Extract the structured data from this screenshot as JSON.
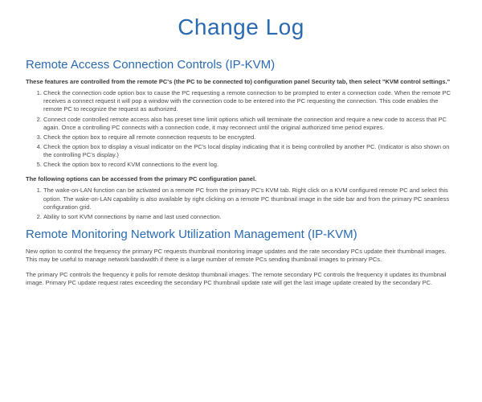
{
  "title": "Change Log",
  "section1": {
    "heading": "Remote Access Connection Controls (IP-KVM)",
    "intro": "These features are controlled from the remote PC's (the PC to be connected to) configuration panel Security tab, then select \"KVM control settings.\"",
    "items": [
      "Check the connection code option box to cause the PC requesting a remote connection to be prompted to enter a connection code. When the remote PC receives a connect request it will pop a window with the connection code to be entered into the PC requesting the connection. This code enables the remote PC to recognize the request as authorized.",
      "Connect code controlled remote access also has preset time limit options which will terminate the connection and require a new code to access that PC again. Once a controlling PC connects with a connection code, it may reconnect until the original authorized time period expires.",
      "Check the option box to require all remote connection requests to be encrypted.",
      "Check the option box to display a visual indicator on the PC's local display indicating that it is being controlled by another PC. (Indicator is also shown on the controlling PC's display.)",
      "Check the option box to record KVM connections to the event log."
    ],
    "intro2": "The following options can be accessed from the primary PC configuration panel.",
    "items2": [
      "The wake-on-LAN function can be activated on a remote PC from the primary PC's KVM tab. Right click on a KVM configured remote PC and select this option. The wake-on-LAN capability is also available by right clicking on a remote PC thumbnail image in the side bar and from the primary PC seamless configuration grid.",
      "Ability to sort KVM connections by name and last used connection."
    ]
  },
  "section2": {
    "heading": "Remote Monitoring Network Utilization Management (IP-KVM)",
    "para1": "New option to control the frequency the primary PC requests thumbnail monitoring image updates and the rate secondary PCs update their thumbnail images. This may be useful to manage network bandwidth if there is a large number of remote PCs sending thumbnail images to primary PCs.",
    "para2": "The primary PC controls the frequency it polls for remote desktop thumbnail images. The remote secondary PC controls the frequency it updates its thumbnail image. Primary PC update request rates exceeding the secondary PC thumbnail update rate will get the last image update created by the secondary PC."
  }
}
